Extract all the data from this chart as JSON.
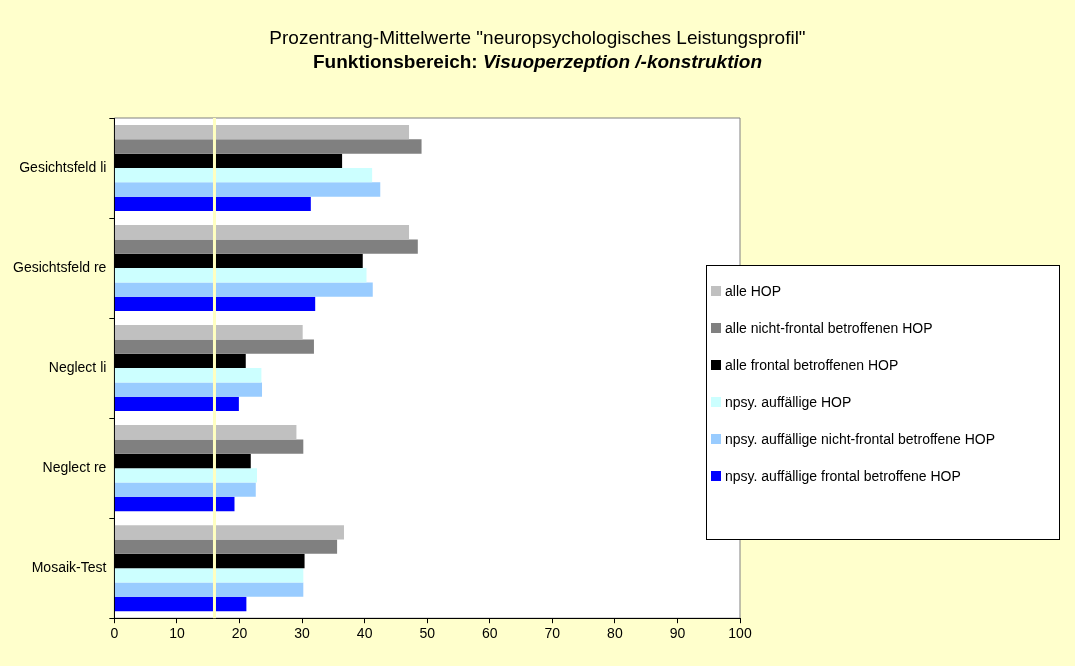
{
  "chart_data": {
    "type": "bar",
    "orientation": "horizontal",
    "title": "Prozentrang-Mittelwerte \"neuropsychologisches Leistungsprofil\"",
    "subtitle": "Funktionsbereich: Visuoperzeption /-konstruktion",
    "categories": [
      "Gesichtsfeld li",
      "Gesichtsfeld re",
      "Neglect li",
      "Neglect re",
      "Mosaik-Test"
    ],
    "series": [
      {
        "name": "alle HOP",
        "color": "#c0c0c0",
        "values": [
          47.1,
          47.1,
          30.1,
          29.1,
          36.7
        ]
      },
      {
        "name": "alle nicht-frontal betroffenen HOP",
        "color": "#808080",
        "values": [
          49.1,
          48.5,
          31.9,
          30.2,
          35.6
        ]
      },
      {
        "name": "alle frontal betroffenen HOP",
        "color": "#000000",
        "values": [
          36.4,
          39.7,
          21.0,
          21.8,
          30.4
        ]
      },
      {
        "name": "npsy. auffällige HOP",
        "color": "#ccffff",
        "values": [
          41.2,
          40.3,
          23.5,
          22.8,
          30.2
        ]
      },
      {
        "name": "npsy. auffällige nicht-frontal betroffene HOP",
        "color": "#99ccff",
        "values": [
          42.5,
          41.3,
          23.6,
          22.6,
          30.2
        ]
      },
      {
        "name": "npsy. auffällige frontal betroffene HOP",
        "color": "#0000ff",
        "values": [
          31.4,
          32.1,
          19.9,
          19.2,
          21.1
        ]
      }
    ],
    "xlim": [
      0,
      100
    ],
    "xticks": [
      0,
      10,
      20,
      30,
      40,
      50,
      60,
      70,
      80,
      90,
      100
    ],
    "ref_lines": [
      {
        "axis": "x",
        "value": 16,
        "color": "#ffffc0"
      }
    ],
    "legend": "right"
  }
}
